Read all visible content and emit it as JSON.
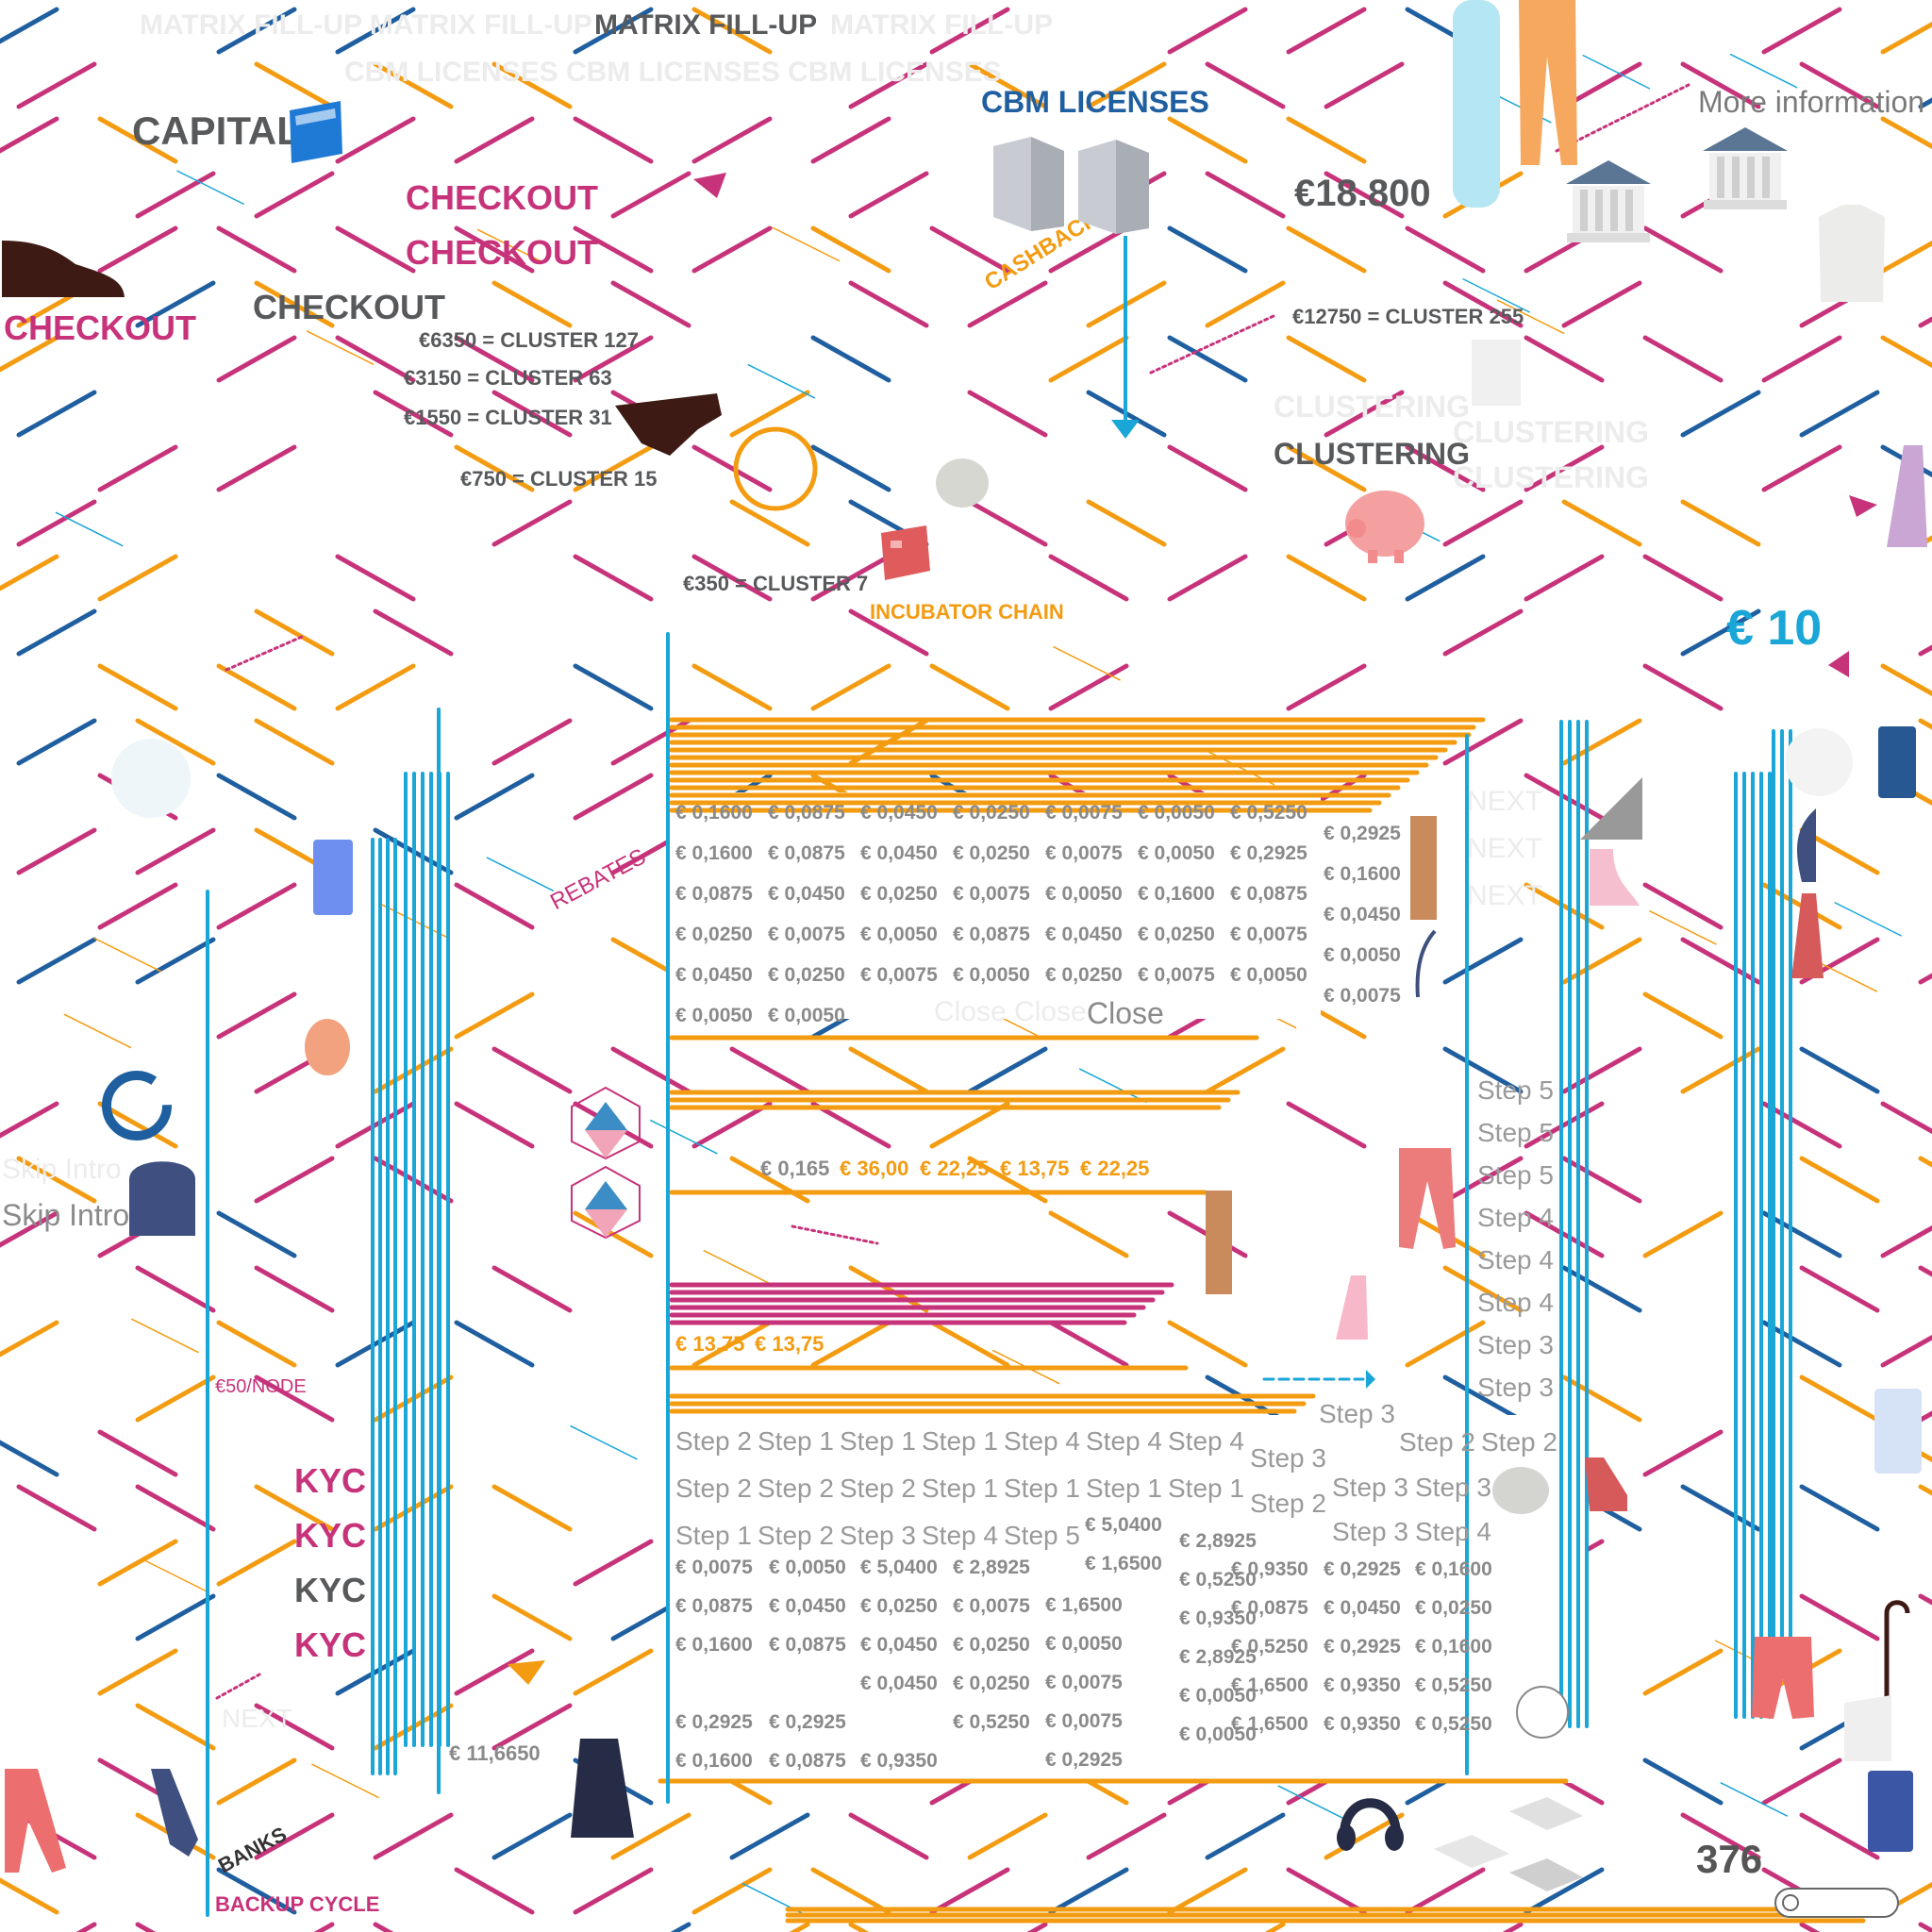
{
  "header": {
    "title": "MATRIX FILL-UP",
    "ghost_title": "MATRIX FILL-UP MATRIX FILL-UP",
    "ghost_title_right": "MATRIX FILL-UP",
    "ghost_licenses": "CBM LICENSES CBM LICENSES CBM LICENSES"
  },
  "labels": {
    "capital": "CAPITAL",
    "cbm_licenses": "CBM LICENSES",
    "checkout": "CHECKOUT",
    "checkout_dark": "CHECKOUT",
    "cashback": "CASHBACK",
    "clustering": "CLUSTERING",
    "clustering_ghost": "CLUSTERING",
    "incubator_chain": "INCUBATOR CHAIN",
    "rebates": "REBATES",
    "per_node": "€50/NODE",
    "kyc": "KYC",
    "banks": "BANKS",
    "backup_cycle": "BACKUP CYCLE",
    "next": "NEXT",
    "skip_intro": "Skip Intro",
    "close": "Close",
    "close_ghost": "Close Close",
    "more_info": "More information",
    "counter": "376"
  },
  "amounts": {
    "big_total": "€18.800",
    "ten": "€ 10",
    "eleven": "€ 11,6650"
  },
  "clusters": [
    "€6350 = CLUSTER 127",
    "€3150 = CLUSTER 63",
    "€1550 = CLUSTER 31",
    "€750 = CLUSTER 15",
    "€350 = CLUSTER 7",
    "€12750 = CLUSTER 255"
  ],
  "grid_top": [
    [
      "€ 0,1600",
      "€ 0,0875",
      "€ 0,0450",
      "€ 0,0250",
      "€ 0,0075",
      "€ 0,0050",
      "€ 0,5250"
    ],
    [
      "€ 0,1600",
      "€ 0,0875",
      "€ 0,0450",
      "€ 0,0250",
      "€ 0,0075",
      "€ 0,0050",
      "€ 0,2925"
    ],
    [
      "€ 0,0875",
      "€ 0,0450",
      "€ 0,0250",
      "€ 0,0075",
      "€ 0,0050",
      "€ 0,1600",
      "€ 0,0875"
    ],
    [
      "€ 0,0250",
      "€ 0,0075",
      "€ 0,0050",
      "€ 0,0875",
      "€ 0,0450",
      "€ 0,0250",
      "€ 0,0075"
    ],
    [
      "€ 0,0450",
      "€ 0,0250",
      "€ 0,0075",
      "€ 0,0050",
      "€ 0,0250",
      "€ 0,0075",
      "€ 0,0050"
    ],
    [
      "€ 0,0050",
      "€ 0,0050"
    ]
  ],
  "grid_top_side": [
    "€ 0,2925",
    "€ 0,1600",
    "€ 0,0450",
    "€ 0,0050",
    "€ 0,0075"
  ],
  "middle_values": {
    "first": "€ 0,165",
    "orange": [
      "€ 36,00",
      "€ 22,25",
      "€ 13,75",
      "€ 22,25"
    ],
    "lower": [
      "€ 13,75",
      "€ 13,75"
    ]
  },
  "steps_right": [
    "Step 5",
    "Step 5",
    "Step 5",
    "Step 4",
    "Step 4",
    "Step 4",
    "Step 3",
    "Step 3"
  ],
  "steps_rows": [
    [
      "Step 2",
      "Step 1",
      "Step 1",
      "Step 1",
      "Step 4",
      "Step 4",
      "Step 4"
    ],
    [
      "Step 2",
      "Step 2",
      "Step 2",
      "Step 1",
      "Step 1",
      "Step 1",
      "Step 1"
    ],
    [
      "Step 1",
      "Step 2",
      "Step 3",
      "Step 4",
      "Step 5"
    ]
  ],
  "steps_misc": {
    "step3_a": "Step 3",
    "step3_b": "Step 3",
    "step2_a": "Step 2",
    "right_pair1": [
      "Step 2",
      "Step 2"
    ],
    "right_pair2": [
      "Step 3",
      "Step 3"
    ],
    "right_pair3": [
      "Step 3",
      "Step 4"
    ]
  },
  "bottom_grid": {
    "col1": [
      "€ 0,0075",
      "€ 0,0875",
      "€ 0,1600",
      "",
      "€ 0,2925",
      "€ 0,1600"
    ],
    "col2": [
      "€ 0,0050",
      "€ 0,0450",
      "€ 0,0875",
      "",
      "€ 0,2925",
      "€ 0,0875"
    ],
    "col3": [
      "€ 5,0400",
      "€ 0,0250",
      "€ 0,0450",
      "€ 0,0450",
      "",
      "€ 0,9350"
    ],
    "col4": [
      "€ 2,8925",
      "€ 0,0075",
      "€ 0,0250",
      "€ 0,0250",
      "€ 0,5250"
    ],
    "col5": [
      "€ 1,6500",
      "€ 0,0050",
      "€ 0,0075",
      "€ 0,0075",
      "€ 0,2925"
    ],
    "col6a": [
      "€ 5,0400",
      "€ 1,6500"
    ],
    "col7": [
      "€ 2,8925",
      "€ 0,5250",
      "€ 0,9350",
      "€ 2,8925",
      "€ 0,0050",
      "€ 0,0050"
    ],
    "col8": [
      "€ 0,9350",
      "€ 0,0875",
      "€ 0,5250",
      "€ 1,6500",
      "€ 1,6500"
    ],
    "col9": [
      "€ 0,2925",
      "€ 0,0450",
      "€ 0,2925",
      "€ 0,9350",
      "€ 0,9350"
    ],
    "col10": [
      "€ 0,1600",
      "€ 0,0250",
      "€ 0,1600",
      "€ 0,5250",
      "€ 0,5250"
    ]
  },
  "colors": {
    "magenta": "#c7337a",
    "orange": "#f39c12",
    "navy": "#1f5fa0",
    "cyan": "#1aa6d6",
    "gray": "#8a8a8a"
  },
  "icons": [
    "card-icon",
    "bank-icon",
    "piggy-bank-icon",
    "building-icon",
    "shoe-icon",
    "shirt-icon",
    "trousers-icon",
    "network-icon",
    "person-icon",
    "toggle-icon"
  ]
}
